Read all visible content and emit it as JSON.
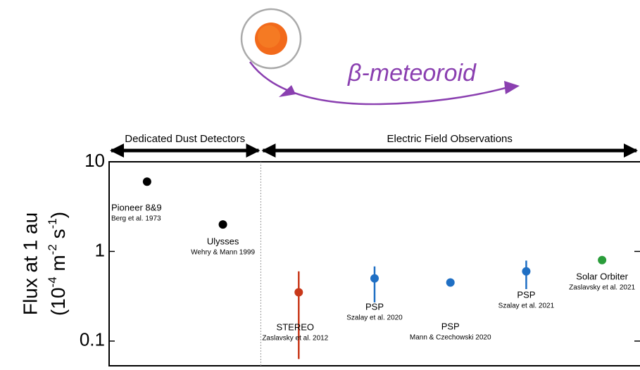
{
  "chart_data": {
    "type": "scatter",
    "annotation": "β-meteoroid",
    "regions": [
      {
        "label": "Dedicated Dust Detectors",
        "count": 2
      },
      {
        "label": "Electric Field Observations",
        "count": 5
      }
    ],
    "y_label": "Flux at 1 au",
    "y_label_units": [
      "(10",
      "-4",
      " m",
      "-2",
      " s",
      "-1",
      ")"
    ],
    "categories": [
      "Pioneer 8&9",
      "Ulysses",
      "STEREO",
      "PSP",
      "PSP",
      "PSP",
      "Solar Orbiter"
    ],
    "citations": [
      "Berg et al. 1973",
      "Wehry & Mann 1999",
      "Zaslavsky et al. 2012",
      "Szalay et al. 2020",
      "Mann & Czechowski 2020",
      "Szalay et al. 2021",
      "Zaslavsky et al. 2021"
    ],
    "values": [
      6.0,
      2.0,
      0.35,
      0.5,
      0.45,
      0.6,
      0.8
    ],
    "lower": [
      null,
      null,
      0.063,
      0.27,
      null,
      0.38,
      null
    ],
    "upper": [
      null,
      null,
      0.6,
      0.68,
      null,
      0.79,
      null
    ],
    "colors": [
      "#000000",
      "#000000",
      "#c8381a",
      "#1f6fc4",
      "#1f6fc4",
      "#1f6fc4",
      "#2a9d3a"
    ],
    "ylim": [
      0.053,
      10
    ],
    "yticks": [
      0.1,
      1,
      10
    ],
    "log_y": true
  }
}
